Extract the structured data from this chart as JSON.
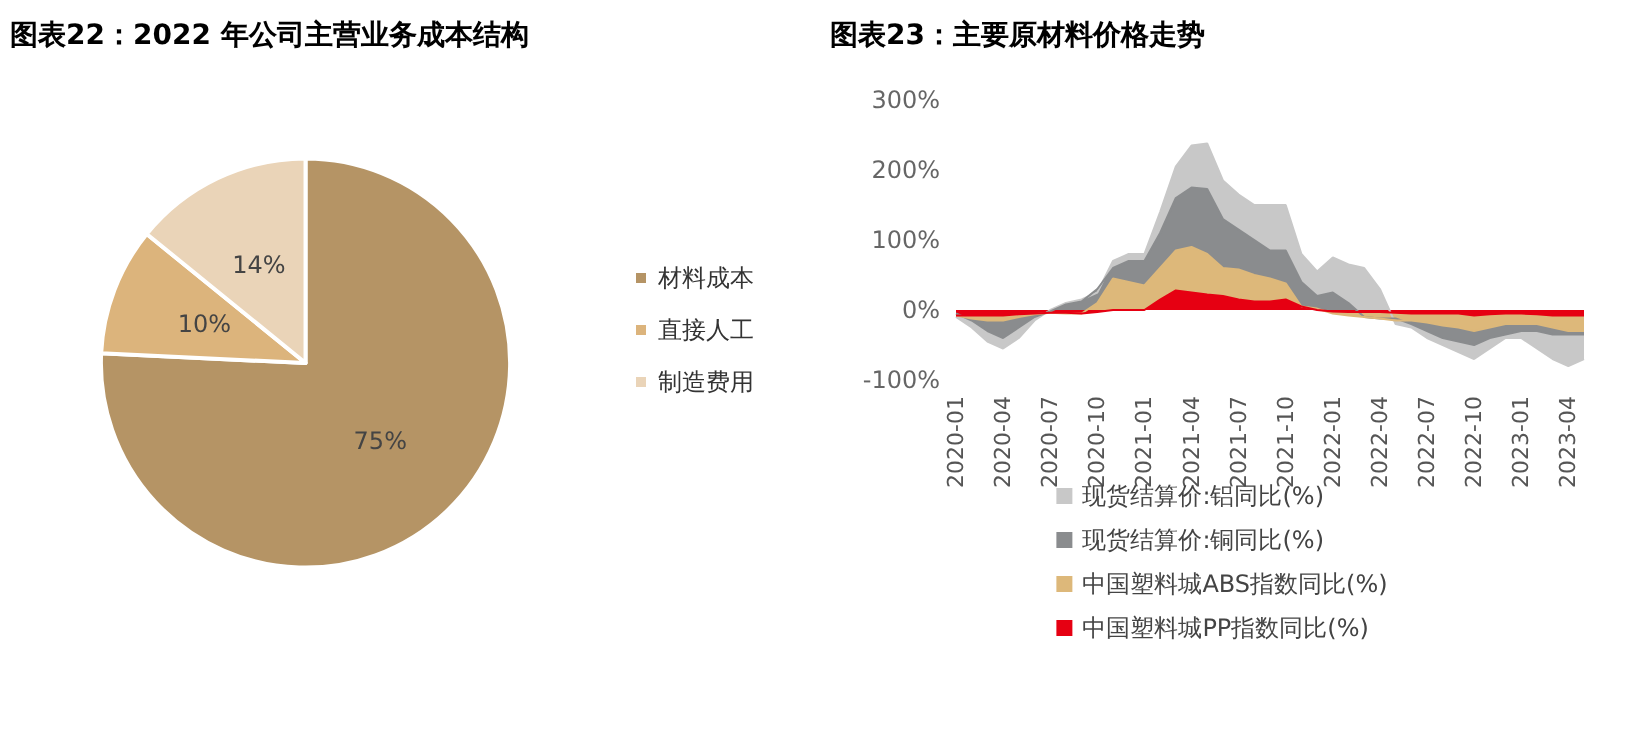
{
  "chart_data": [
    {
      "type": "pie",
      "title": "图表22：2022 年公司主营业务成本结构",
      "categories": [
        "材料成本",
        "直接人工",
        "制造费用"
      ],
      "values": [
        75,
        10,
        14
      ],
      "colors": [
        "#b59465",
        "#dcb47c",
        "#ead4b8"
      ],
      "value_labels": [
        "75%",
        "10%",
        "14%"
      ],
      "legend": "right"
    },
    {
      "type": "area",
      "title": "图表23：主要原材料价格走势",
      "categories": [
        "2020-01",
        null,
        null,
        "2020-04",
        null,
        null,
        "2020-07",
        null,
        null,
        "2020-10",
        null,
        null,
        "2021-01",
        null,
        null,
        "2021-04",
        null,
        null,
        "2021-07",
        null,
        null,
        "2021-10",
        null,
        null,
        "2022-01",
        null,
        null,
        "2022-04",
        null,
        null,
        "2022-07",
        null,
        null,
        "2022-10",
        null,
        null,
        "2023-01",
        null,
        null,
        "2023-04",
        null
      ],
      "series": [
        {
          "name": "现货结算价:铝同比(%)",
          "color": "#c8c8c8",
          "values": [
            -10,
            -25,
            -45,
            -55,
            -40,
            -15,
            0,
            10,
            15,
            25,
            70,
            80,
            80,
            140,
            205,
            235,
            238,
            185,
            165,
            150,
            150,
            150,
            80,
            55,
            75,
            65,
            60,
            30,
            -20,
            -25,
            -40,
            -50,
            -60,
            -70,
            -55,
            -40,
            -40,
            -55,
            -70,
            -80,
            -70
          ]
        },
        {
          "name": "现货结算价:铜同比(%)",
          "color": "#8a8c8e",
          "values": [
            -5,
            -15,
            -30,
            -40,
            -25,
            -10,
            -2,
            8,
            12,
            30,
            60,
            70,
            70,
            110,
            160,
            175,
            173,
            130,
            115,
            100,
            85,
            85,
            40,
            20,
            25,
            10,
            -10,
            -12,
            -12,
            -20,
            -30,
            -40,
            -45,
            -50,
            -40,
            -35,
            -30,
            -30,
            -35,
            -35,
            -35
          ]
        },
        {
          "name": "中国塑料城ABS指数同比(%)",
          "color": "#ddb87a",
          "values": [
            -8,
            -12,
            -15,
            -15,
            -10,
            -6,
            -4,
            -5,
            -5,
            10,
            45,
            40,
            35,
            60,
            85,
            90,
            80,
            60,
            58,
            50,
            45,
            38,
            5,
            2,
            -5,
            -8,
            -10,
            -12,
            -15,
            -15,
            -18,
            -22,
            -25,
            -30,
            -25,
            -20,
            -20,
            -20,
            -25,
            -30,
            -30
          ]
        },
        {
          "name": "中国塑料城PP指数同比(%)",
          "color": "#e60012",
          "values": [
            -8,
            -8,
            -8,
            -8,
            -6,
            -5,
            -4,
            -4,
            -5,
            -3,
            0,
            0,
            0,
            15,
            28,
            25,
            22,
            20,
            15,
            12,
            12,
            15,
            5,
            0,
            -2,
            -3,
            -3,
            -3,
            -4,
            -5,
            -5,
            -5,
            -5,
            -8,
            -6,
            -5,
            -5,
            -6,
            -8,
            -8,
            -8
          ]
        }
      ],
      "ylim": [
        -100,
        300
      ],
      "yticks": [
        {
          "value": -100,
          "label": "-100%"
        },
        {
          "value": 0,
          "label": "0%"
        },
        {
          "value": 100,
          "label": "100%"
        },
        {
          "value": 200,
          "label": "200%"
        },
        {
          "value": 300,
          "label": "300%"
        }
      ],
      "legend": "bottom"
    }
  ]
}
